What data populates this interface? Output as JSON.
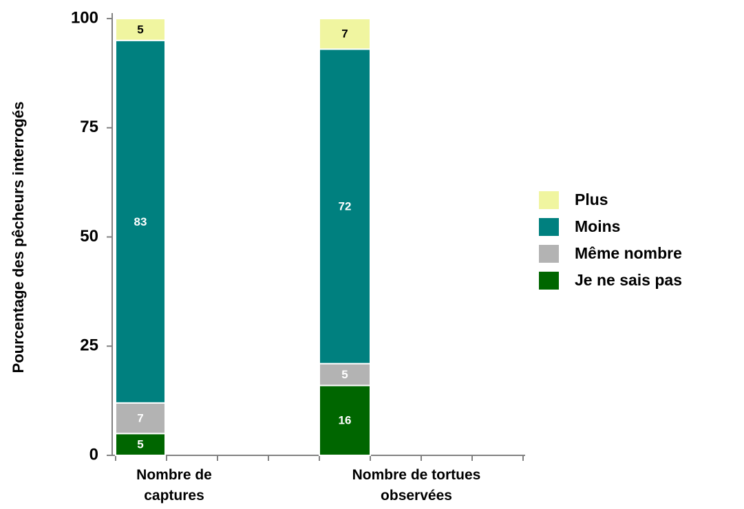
{
  "chart_data": {
    "type": "stacked_bar",
    "y_label": "Pourcentage des pêcheurs interrogés",
    "categories": [
      "Nombre de captures",
      "Nombre de tortues observées"
    ],
    "series": [
      {
        "name": "Je ne sais pas",
        "color": "#006600",
        "label_color": "#ffffff",
        "values": [
          5,
          16
        ]
      },
      {
        "name": "Même nombre",
        "color": "#b3b3b3",
        "label_color": "#ffffff",
        "values": [
          7,
          5
        ]
      },
      {
        "name": "Moins",
        "color": "#00807f",
        "label_color": "#ffffff",
        "values": [
          83,
          72
        ]
      },
      {
        "name": "Plus",
        "color": "#f0f5a0",
        "label_color": "#000000",
        "values": [
          5,
          7
        ]
      }
    ],
    "ylim": [
      0,
      100
    ],
    "yticks": [
      0,
      25,
      50,
      75,
      100
    ],
    "legend": "right"
  }
}
